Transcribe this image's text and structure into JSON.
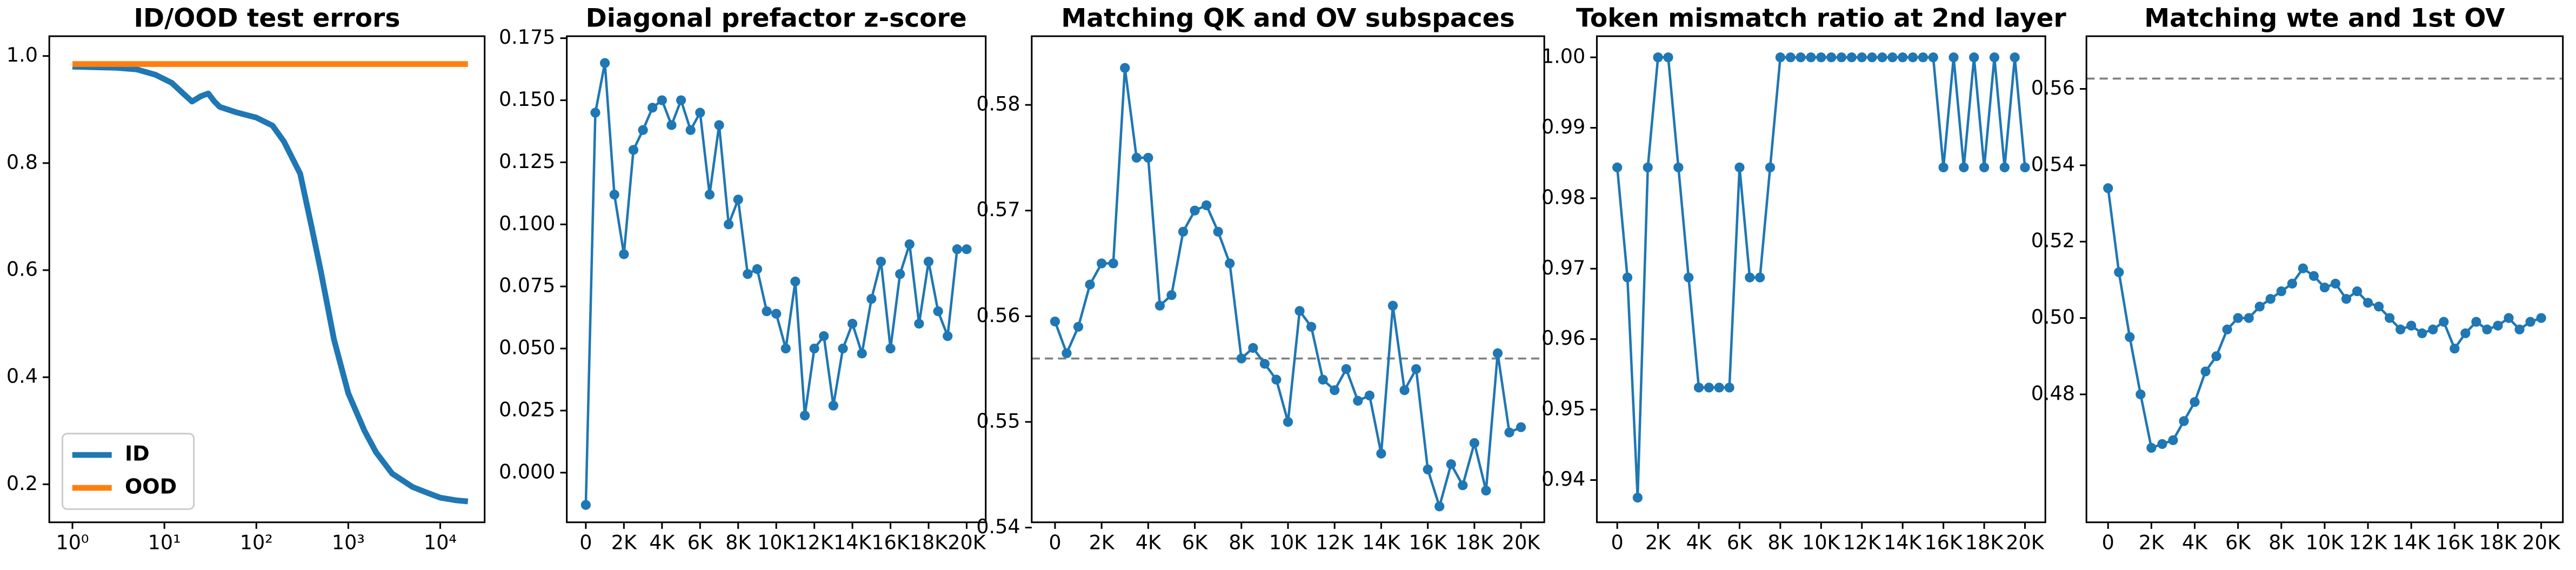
{
  "chart_data": [
    {
      "type": "line",
      "title": "ID/OOD test errors",
      "xscale": "log",
      "legend": "lower left",
      "x": [
        1,
        3,
        5,
        8,
        12,
        16,
        20,
        25,
        30,
        35,
        40,
        60,
        100,
        150,
        200,
        300,
        400,
        500,
        700,
        1000,
        1500,
        2000,
        3000,
        5000,
        7000,
        10000,
        15000,
        20000
      ],
      "series": [
        {
          "name": "ID",
          "color": "#1f77b4",
          "values": [
            0.98,
            0.978,
            0.975,
            0.965,
            0.95,
            0.93,
            0.915,
            0.925,
            0.93,
            0.915,
            0.905,
            0.895,
            0.885,
            0.87,
            0.84,
            0.78,
            0.68,
            0.6,
            0.47,
            0.37,
            0.3,
            0.26,
            0.22,
            0.195,
            0.185,
            0.175,
            0.17,
            0.168
          ]
        },
        {
          "name": "OOD",
          "color": "#ff7f0e",
          "values": [
            0.985,
            0.985,
            0.985,
            0.985,
            0.985,
            0.985,
            0.985,
            0.985,
            0.985,
            0.985,
            0.985,
            0.985,
            0.985,
            0.985,
            0.985,
            0.985,
            0.985,
            0.985,
            0.985,
            0.985,
            0.985,
            0.985,
            0.985,
            0.985,
            0.985,
            0.985,
            0.985,
            0.985
          ]
        }
      ],
      "xlim": [
        0.56,
        30400
      ],
      "ylim": [
        0.129,
        1.037
      ],
      "xticks": [
        {
          "value": 1,
          "label": "10⁰"
        },
        {
          "value": 10,
          "label": "10¹"
        },
        {
          "value": 100,
          "label": "10²"
        },
        {
          "value": 1000,
          "label": "10³"
        },
        {
          "value": 10000,
          "label": "10⁴"
        }
      ],
      "yticks": [
        0.2,
        0.4,
        0.6,
        0.8,
        {
          "value": 1,
          "label": "1.0"
        }
      ]
    },
    {
      "type": "line",
      "title": "Diagonal prefactor z-score",
      "markers": true,
      "color": "#1f77b4",
      "x": [
        0,
        500,
        1000,
        1500,
        2000,
        2500,
        3000,
        3500,
        4000,
        4500,
        5000,
        5500,
        6000,
        6500,
        7000,
        7500,
        8000,
        8500,
        9000,
        9500,
        10000,
        10500,
        11000,
        11500,
        12000,
        12500,
        13000,
        13500,
        14000,
        14500,
        15000,
        15500,
        16000,
        16500,
        17000,
        17500,
        18000,
        18500,
        19000,
        19500,
        20000
      ],
      "values": [
        -0.013,
        0.145,
        0.165,
        0.112,
        0.088,
        0.13,
        0.138,
        0.147,
        0.15,
        0.14,
        0.15,
        0.138,
        0.145,
        0.112,
        0.14,
        0.1,
        0.11,
        0.08,
        0.082,
        0.065,
        0.064,
        0.05,
        0.077,
        0.023,
        0.05,
        0.055,
        0.027,
        0.05,
        0.06,
        0.048,
        0.07,
        0.085,
        0.05,
        0.08,
        0.092,
        0.06,
        0.085,
        0.065,
        0.055,
        0.09,
        0.09
      ],
      "xlim": [
        -1000,
        21000
      ],
      "ylim": [
        -0.02,
        0.1758
      ],
      "xticks": [
        0,
        {
          "value": 2000,
          "label": "2K"
        },
        {
          "value": 4000,
          "label": "4K"
        },
        {
          "value": 6000,
          "label": "6K"
        },
        {
          "value": 8000,
          "label": "8K"
        },
        {
          "value": 10000,
          "label": "10K"
        },
        {
          "value": 12000,
          "label": "12K"
        },
        {
          "value": 14000,
          "label": "14K"
        },
        {
          "value": 16000,
          "label": "16K"
        },
        {
          "value": 18000,
          "label": "18K"
        },
        {
          "value": 20000,
          "label": "20K"
        }
      ],
      "yticks": [
        {
          "value": 0,
          "label": "0.000"
        },
        0.025,
        {
          "value": 0.05,
          "label": "0.050"
        },
        0.075,
        {
          "value": 0.1,
          "label": "0.100"
        },
        0.125,
        {
          "value": 0.15,
          "label": "0.150"
        },
        0.175
      ]
    },
    {
      "type": "line",
      "title": "Matching QK and OV subspaces",
      "markers": true,
      "color": "#1f77b4",
      "reference_line": 0.556,
      "reference_color": "#808080",
      "x": [
        0,
        500,
        1000,
        1500,
        2000,
        2500,
        3000,
        3500,
        4000,
        4500,
        5000,
        5500,
        6000,
        6500,
        7000,
        7500,
        8000,
        8500,
        9000,
        9500,
        10000,
        10500,
        11000,
        11500,
        12000,
        12500,
        13000,
        13500,
        14000,
        14500,
        15000,
        15500,
        16000,
        16500,
        17000,
        17500,
        18000,
        18500,
        19000,
        19500,
        20000
      ],
      "values": [
        0.5595,
        0.5565,
        0.559,
        0.563,
        0.565,
        0.565,
        0.5835,
        0.575,
        0.575,
        0.561,
        0.562,
        0.568,
        0.57,
        0.5705,
        0.568,
        0.565,
        0.556,
        0.557,
        0.5555,
        0.554,
        0.55,
        0.5605,
        0.559,
        0.554,
        0.553,
        0.555,
        0.552,
        0.5525,
        0.547,
        0.561,
        0.553,
        0.555,
        0.5455,
        0.542,
        0.546,
        0.544,
        0.548,
        0.5435,
        0.5565,
        0.549,
        0.5495
      ],
      "xlim": [
        -1000,
        21000
      ],
      "ylim": [
        0.5405,
        0.5865
      ],
      "xticks": [
        0,
        {
          "value": 2000,
          "label": "2K"
        },
        {
          "value": 4000,
          "label": "4K"
        },
        {
          "value": 6000,
          "label": "6K"
        },
        {
          "value": 8000,
          "label": "8K"
        },
        {
          "value": 10000,
          "label": "10K"
        },
        {
          "value": 12000,
          "label": "12K"
        },
        {
          "value": 14000,
          "label": "14K"
        },
        {
          "value": 16000,
          "label": "16K"
        },
        {
          "value": 18000,
          "label": "18K"
        },
        {
          "value": 20000,
          "label": "20K"
        }
      ],
      "yticks": [
        0.54,
        0.55,
        0.56,
        0.57,
        0.58
      ]
    },
    {
      "type": "line",
      "title": "Token mismatch ratio at 2nd layer",
      "markers": true,
      "color": "#1f77b4",
      "x": [
        0,
        500,
        1000,
        1500,
        2000,
        2500,
        3000,
        3500,
        4000,
        4500,
        5000,
        5500,
        6000,
        6500,
        7000,
        7500,
        8000,
        8500,
        9000,
        9500,
        10000,
        10500,
        11000,
        11500,
        12000,
        12500,
        13000,
        13500,
        14000,
        14500,
        15000,
        15500,
        16000,
        16500,
        17000,
        17500,
        18000,
        18500,
        19000,
        19500,
        20000
      ],
      "values": [
        0.984375,
        0.96875,
        0.9375,
        0.984375,
        1,
        1,
        0.984375,
        0.96875,
        0.953125,
        0.953125,
        0.953125,
        0.953125,
        0.984375,
        0.96875,
        0.96875,
        0.984375,
        1,
        1,
        1,
        1,
        1,
        1,
        1,
        1,
        1,
        1,
        1,
        1,
        1,
        1,
        1,
        1,
        0.984375,
        1,
        0.984375,
        1,
        0.984375,
        1,
        0.984375,
        1,
        0.984375
      ],
      "xlim": [
        -1000,
        21000
      ],
      "ylim": [
        0.934,
        1.003
      ],
      "xticks": [
        0,
        {
          "value": 2000,
          "label": "2K"
        },
        {
          "value": 4000,
          "label": "4K"
        },
        {
          "value": 6000,
          "label": "6K"
        },
        {
          "value": 8000,
          "label": "8K"
        },
        {
          "value": 10000,
          "label": "10K"
        },
        {
          "value": 12000,
          "label": "12K"
        },
        {
          "value": 14000,
          "label": "14K"
        },
        {
          "value": 16000,
          "label": "16K"
        },
        {
          "value": 18000,
          "label": "18K"
        },
        {
          "value": 20000,
          "label": "20K"
        }
      ],
      "yticks": [
        0.94,
        0.95,
        0.96,
        0.97,
        0.98,
        0.99,
        {
          "value": 1,
          "label": "1.00"
        }
      ]
    },
    {
      "type": "line",
      "title": "Matching wte and 1st OV",
      "markers": true,
      "color": "#1f77b4",
      "reference_line": 0.5627,
      "reference_color": "#808080",
      "x": [
        0,
        500,
        1000,
        1500,
        2000,
        2500,
        3000,
        3500,
        4000,
        4500,
        5000,
        5500,
        6000,
        6500,
        7000,
        7500,
        8000,
        8500,
        9000,
        9500,
        10000,
        10500,
        11000,
        11500,
        12000,
        12500,
        13000,
        13500,
        14000,
        14500,
        15000,
        15500,
        16000,
        16500,
        17000,
        17500,
        18000,
        18500,
        19000,
        19500,
        20000
      ],
      "values": [
        0.534,
        0.512,
        0.495,
        0.48,
        0.466,
        0.467,
        0.468,
        0.473,
        0.478,
        0.486,
        0.49,
        0.497,
        0.5,
        0.5,
        0.503,
        0.505,
        0.507,
        0.509,
        0.513,
        0.511,
        0.508,
        0.509,
        0.505,
        0.507,
        0.504,
        0.503,
        0.5,
        0.497,
        0.498,
        0.496,
        0.497,
        0.499,
        0.492,
        0.496,
        0.499,
        0.497,
        0.498,
        0.5,
        0.497,
        0.499,
        0.5
      ],
      "xlim": [
        -1000,
        21000
      ],
      "ylim": [
        0.4465,
        0.5738
      ],
      "xticks": [
        0,
        {
          "value": 2000,
          "label": "2K"
        },
        {
          "value": 4000,
          "label": "4K"
        },
        {
          "value": 6000,
          "label": "6K"
        },
        {
          "value": 8000,
          "label": "8K"
        },
        {
          "value": 10000,
          "label": "10K"
        },
        {
          "value": 12000,
          "label": "12K"
        },
        {
          "value": 14000,
          "label": "14K"
        },
        {
          "value": 16000,
          "label": "16K"
        },
        {
          "value": 18000,
          "label": "18K"
        },
        {
          "value": 20000,
          "label": "20K"
        }
      ],
      "yticks": [
        0.48,
        {
          "value": 0.5,
          "label": "0.50"
        },
        0.52,
        0.54,
        0.56
      ]
    }
  ]
}
